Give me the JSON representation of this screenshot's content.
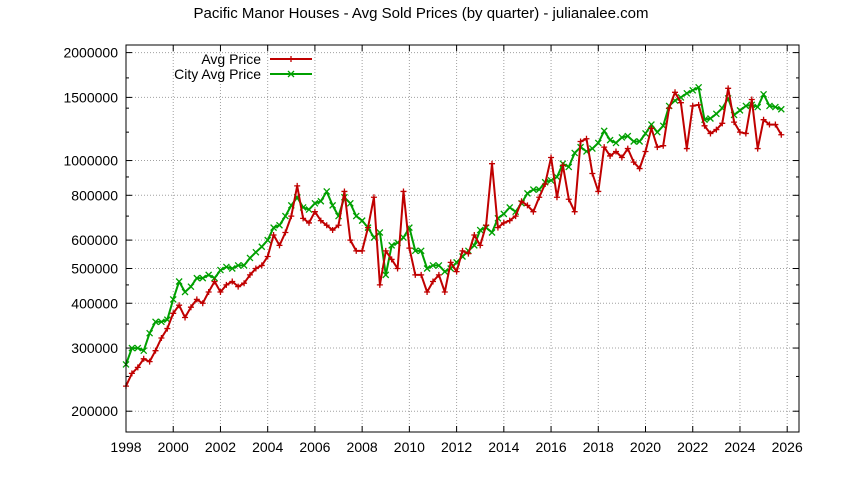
{
  "chart_data": {
    "type": "line",
    "title": "Pacific Manor Houses - Avg Sold Prices (by quarter) - julianalee.com",
    "xlabel": "",
    "ylabel": "",
    "y_scale": "log",
    "xlim": [
      1998,
      2026.5
    ],
    "ylim": [
      175000,
      2100000
    ],
    "x_ticks": [
      1998,
      2000,
      2002,
      2004,
      2006,
      2008,
      2010,
      2012,
      2014,
      2016,
      2018,
      2020,
      2022,
      2024,
      2026
    ],
    "x_tick_labels": [
      "1998",
      "2000",
      "2002",
      "2004",
      "2006",
      "2008",
      "2010",
      "2012",
      "2014",
      "2016",
      "2018",
      "2020",
      "2022",
      "2024",
      "2026"
    ],
    "y_ticks": [
      200000,
      300000,
      400000,
      500000,
      600000,
      800000,
      1000000,
      1500000,
      2000000
    ],
    "y_tick_labels": [
      "200000",
      "300000",
      "400000",
      "500000",
      "600000",
      "800000",
      "1000000",
      "1500000",
      "2000000"
    ],
    "grid": true,
    "legend_position": "top-left",
    "colors": {
      "avg_price": "#c00000",
      "city_avg_price": "#00a000",
      "grid": "#a0a0a0",
      "axis": "#000000"
    },
    "series": [
      {
        "name": "Avg Price",
        "marker": "plus",
        "x": [
          1998.0,
          1998.25,
          1998.5,
          1998.75,
          1999.0,
          1999.25,
          1999.5,
          1999.75,
          2000.0,
          2000.25,
          2000.5,
          2000.75,
          2001.0,
          2001.25,
          2001.5,
          2001.75,
          2002.0,
          2002.25,
          2002.5,
          2002.75,
          2003.0,
          2003.25,
          2003.5,
          2003.75,
          2004.0,
          2004.25,
          2004.5,
          2004.75,
          2005.0,
          2005.25,
          2005.5,
          2005.75,
          2006.0,
          2006.25,
          2006.5,
          2006.75,
          2007.0,
          2007.25,
          2007.5,
          2007.75,
          2008.0,
          2008.25,
          2008.5,
          2008.75,
          2009.0,
          2009.25,
          2009.5,
          2009.75,
          2010.0,
          2010.25,
          2010.5,
          2010.75,
          2011.0,
          2011.25,
          2011.5,
          2011.75,
          2012.0,
          2012.25,
          2012.5,
          2012.75,
          2013.0,
          2013.25,
          2013.5,
          2013.75,
          2014.0,
          2014.25,
          2014.5,
          2014.75,
          2015.0,
          2015.25,
          2015.5,
          2015.75,
          2016.0,
          2016.25,
          2016.5,
          2016.75,
          2017.0,
          2017.25,
          2017.5,
          2017.75,
          2018.0,
          2018.25,
          2018.5,
          2018.75,
          2019.0,
          2019.25,
          2019.5,
          2019.75,
          2020.0,
          2020.25,
          2020.5,
          2020.75,
          2021.0,
          2021.25,
          2021.5,
          2021.75,
          2022.0,
          2022.25,
          2022.5,
          2022.75,
          2023.0,
          2023.25,
          2023.5,
          2023.75,
          2024.0,
          2024.25,
          2024.5,
          2024.75,
          2025.0,
          2025.25,
          2025.5,
          2025.75
        ],
        "y": [
          235000,
          255000,
          265000,
          280000,
          275000,
          295000,
          320000,
          340000,
          375000,
          395000,
          365000,
          390000,
          410000,
          400000,
          430000,
          460000,
          430000,
          450000,
          460000,
          445000,
          455000,
          480000,
          500000,
          510000,
          540000,
          620000,
          580000,
          630000,
          700000,
          850000,
          690000,
          670000,
          720000,
          680000,
          660000,
          640000,
          660000,
          820000,
          600000,
          560000,
          560000,
          650000,
          790000,
          450000,
          560000,
          530000,
          500000,
          820000,
          570000,
          480000,
          480000,
          430000,
          460000,
          480000,
          430000,
          520000,
          490000,
          560000,
          550000,
          620000,
          580000,
          660000,
          980000,
          650000,
          670000,
          680000,
          700000,
          770000,
          750000,
          720000,
          790000,
          860000,
          1020000,
          790000,
          970000,
          780000,
          720000,
          1130000,
          1150000,
          920000,
          820000,
          1090000,
          1030000,
          1060000,
          1020000,
          1080000,
          990000,
          950000,
          1060000,
          1230000,
          1090000,
          1100000,
          1400000,
          1550000,
          1450000,
          1080000,
          1420000,
          1430000,
          1250000,
          1190000,
          1220000,
          1270000,
          1590000,
          1280000,
          1200000,
          1190000,
          1480000,
          1080000,
          1300000,
          1260000,
          1260000,
          1180000
        ]
      },
      {
        "name": "City Avg Price",
        "marker": "cross",
        "x": [
          1998.0,
          1998.25,
          1998.5,
          1998.75,
          1999.0,
          1999.25,
          1999.5,
          1999.75,
          2000.0,
          2000.25,
          2000.5,
          2000.75,
          2001.0,
          2001.25,
          2001.5,
          2001.75,
          2002.0,
          2002.25,
          2002.5,
          2002.75,
          2003.0,
          2003.25,
          2003.5,
          2003.75,
          2004.0,
          2004.25,
          2004.5,
          2004.75,
          2005.0,
          2005.25,
          2005.5,
          2005.75,
          2006.0,
          2006.25,
          2006.5,
          2006.75,
          2007.0,
          2007.25,
          2007.5,
          2007.75,
          2008.0,
          2008.25,
          2008.5,
          2008.75,
          2009.0,
          2009.25,
          2009.5,
          2009.75,
          2010.0,
          2010.25,
          2010.5,
          2010.75,
          2011.0,
          2011.25,
          2011.5,
          2011.75,
          2012.0,
          2012.25,
          2012.5,
          2012.75,
          2013.0,
          2013.25,
          2013.5,
          2013.75,
          2014.0,
          2014.25,
          2014.5,
          2014.75,
          2015.0,
          2015.25,
          2015.5,
          2015.75,
          2016.0,
          2016.25,
          2016.5,
          2016.75,
          2017.0,
          2017.25,
          2017.5,
          2017.75,
          2018.0,
          2018.25,
          2018.5,
          2018.75,
          2019.0,
          2019.25,
          2019.5,
          2019.75,
          2020.0,
          2020.25,
          2020.5,
          2020.75,
          2021.0,
          2021.25,
          2021.5,
          2021.75,
          2022.0,
          2022.25,
          2022.5,
          2022.75,
          2023.0,
          2023.25,
          2023.5,
          2023.75,
          2024.0,
          2024.25,
          2024.5,
          2024.75,
          2025.0,
          2025.25,
          2025.5,
          2025.75
        ],
        "y": [
          270000,
          300000,
          300000,
          295000,
          330000,
          355000,
          355000,
          360000,
          410000,
          460000,
          430000,
          445000,
          470000,
          470000,
          480000,
          470000,
          495000,
          505000,
          500000,
          510000,
          510000,
          535000,
          555000,
          575000,
          600000,
          650000,
          660000,
          700000,
          750000,
          790000,
          740000,
          730000,
          760000,
          770000,
          820000,
          750000,
          700000,
          790000,
          760000,
          700000,
          680000,
          650000,
          610000,
          630000,
          480000,
          580000,
          590000,
          610000,
          650000,
          560000,
          560000,
          500000,
          510000,
          510000,
          490000,
          500000,
          520000,
          540000,
          560000,
          580000,
          640000,
          650000,
          630000,
          690000,
          710000,
          740000,
          720000,
          760000,
          810000,
          830000,
          830000,
          870000,
          880000,
          900000,
          980000,
          960000,
          1050000,
          1090000,
          1060000,
          1080000,
          1120000,
          1210000,
          1140000,
          1120000,
          1160000,
          1170000,
          1130000,
          1130000,
          1190000,
          1260000,
          1200000,
          1250000,
          1420000,
          1470000,
          1500000,
          1540000,
          1570000,
          1600000,
          1300000,
          1310000,
          1350000,
          1400000,
          1490000,
          1340000,
          1380000,
          1420000,
          1430000,
          1410000,
          1530000,
          1420000,
          1410000,
          1390000
        ]
      }
    ]
  }
}
